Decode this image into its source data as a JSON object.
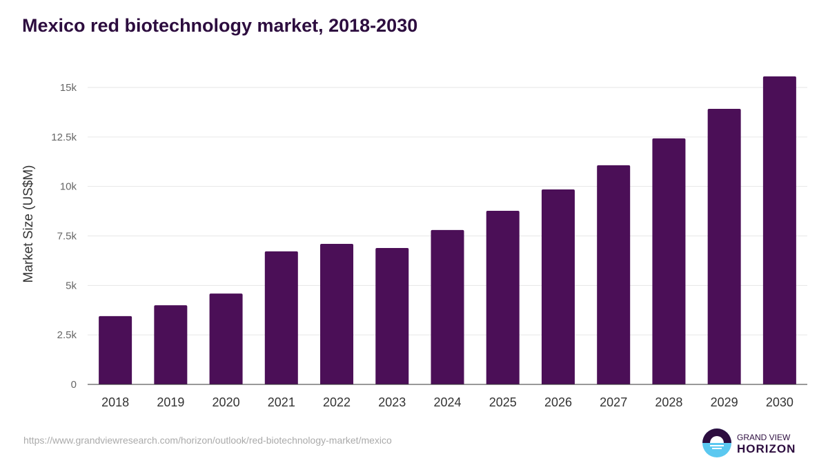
{
  "title": "Mexico red biotechnology market, 2018-2030",
  "source_url": "https://www.grandviewresearch.com/horizon/outlook/red-biotechnology-market/mexico",
  "logo": {
    "line1": "GRAND VIEW",
    "line2": "HORIZON"
  },
  "colors": {
    "bar": "#4b0f57",
    "title": "#2d0d3f"
  },
  "chart_data": {
    "type": "bar",
    "title": "Mexico red biotechnology market, 2018-2030",
    "xlabel": "",
    "ylabel": "Market Size (US$M)",
    "ylim": [
      0,
      16000
    ],
    "yticks": [
      0,
      2500,
      5000,
      7500,
      10000,
      12500,
      15000
    ],
    "ytick_labels": [
      "0",
      "2.5k",
      "5k",
      "7.5k",
      "10k",
      "12.5k",
      "15k"
    ],
    "grid": true,
    "categories": [
      "2018",
      "2019",
      "2020",
      "2021",
      "2022",
      "2023",
      "2024",
      "2025",
      "2026",
      "2027",
      "2028",
      "2029",
      "2030"
    ],
    "values": [
      3450,
      4000,
      4590,
      6720,
      7100,
      6890,
      7800,
      8770,
      9850,
      11070,
      12430,
      13920,
      15560
    ]
  }
}
